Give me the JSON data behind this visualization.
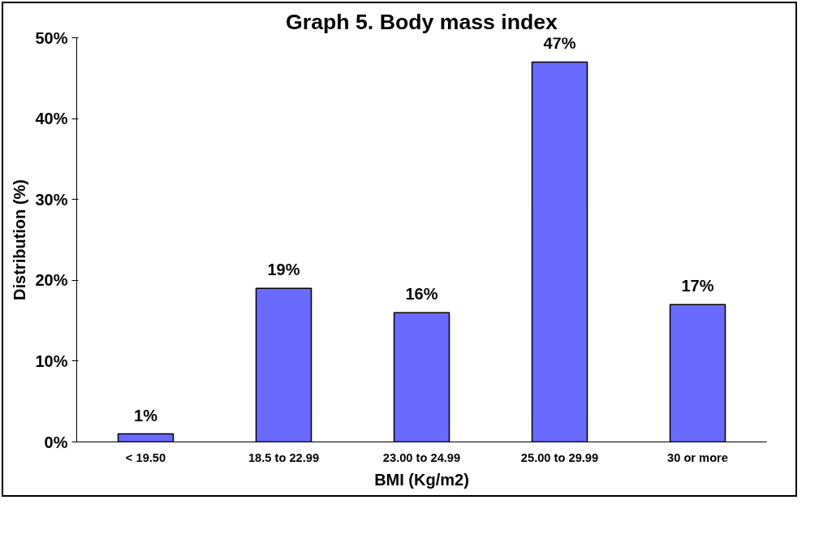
{
  "chart_data": {
    "type": "bar",
    "title": "Graph 5. Body mass index",
    "xlabel": "BMI (Kg/m2)",
    "ylabel": "Distribution (%)",
    "categories": [
      "< 19.50",
      "18.5 to 22.99",
      "23.00 to 24.99",
      "25.00 to 29.99",
      "30 or more"
    ],
    "values": [
      1,
      19,
      16,
      47,
      17
    ],
    "value_labels": [
      "1%",
      "19%",
      "16%",
      "47%",
      "17%"
    ],
    "color": "#6a6aff",
    "ylim": [
      0,
      50
    ],
    "yticks": [
      {
        "value": 0,
        "label": "0%"
      },
      {
        "value": 10,
        "label": "10%"
      },
      {
        "value": 20,
        "label": "20%"
      },
      {
        "value": 30,
        "label": "30%"
      },
      {
        "value": 40,
        "label": "40%"
      },
      {
        "value": 50,
        "label": "50%"
      }
    ],
    "grid": false
  }
}
